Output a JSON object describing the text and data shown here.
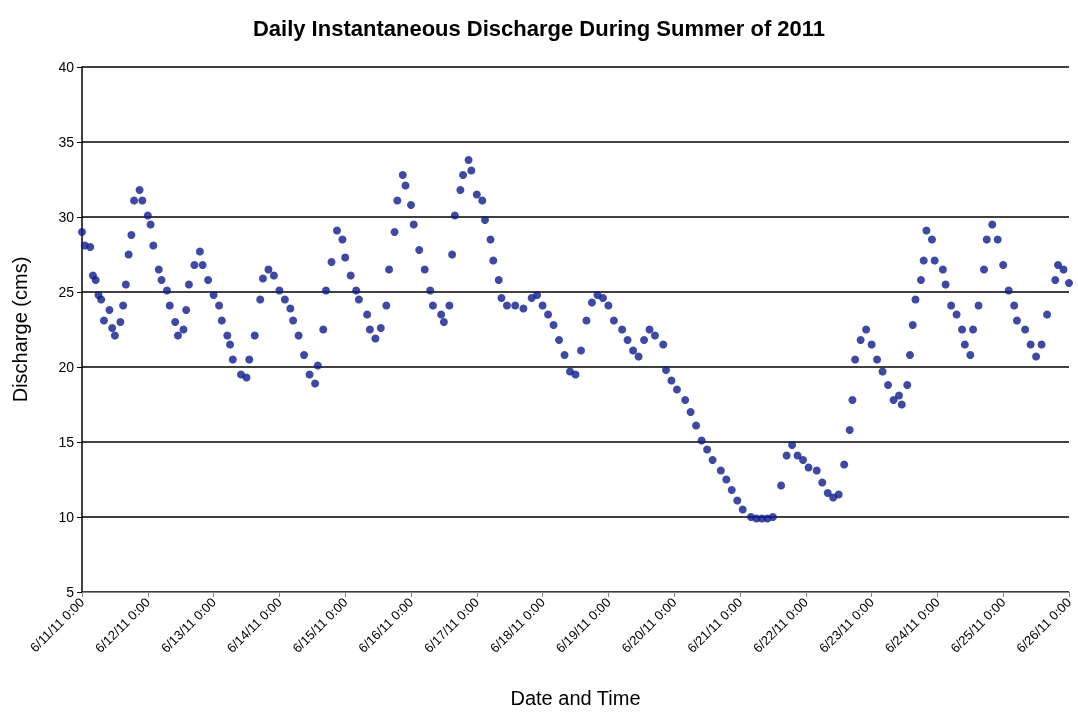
{
  "chart_data": {
    "type": "scatter",
    "title": "Daily Instantaneous Discharge During Summer of 2011",
    "xlabel": "Date and Time",
    "ylabel": "Discharge (cms)",
    "x": [
      "2011-06-11T00:00",
      "2011-06-11T01:00",
      "2011-06-11T03:00",
      "2011-06-11T04:00",
      "2011-06-11T05:00",
      "2011-06-11T06:00",
      "2011-06-11T07:00",
      "2011-06-11T08:00",
      "2011-06-11T10:00",
      "2011-06-11T11:00",
      "2011-06-11T12:00",
      "2011-06-11T14:00",
      "2011-06-11T15:00",
      "2011-06-11T16:00",
      "2011-06-11T17:00",
      "2011-06-11T18:00",
      "2011-06-11T19:00",
      "2011-06-11T21:00",
      "2011-06-11T22:00",
      "2011-06-12T00:00",
      "2011-06-12T01:00",
      "2011-06-12T02:00",
      "2011-06-12T04:00",
      "2011-06-12T05:00",
      "2011-06-12T07:00",
      "2011-06-12T08:00",
      "2011-06-12T10:00",
      "2011-06-12T11:00",
      "2011-06-12T13:00",
      "2011-06-12T14:00",
      "2011-06-12T15:00",
      "2011-06-12T17:00",
      "2011-06-12T19:00",
      "2011-06-12T20:00",
      "2011-06-12T22:00",
      "2011-06-13T00:00",
      "2011-06-13T02:00",
      "2011-06-13T03:00",
      "2011-06-13T05:00",
      "2011-06-13T06:00",
      "2011-06-13T07:00",
      "2011-06-13T10:00",
      "2011-06-13T12:00",
      "2011-06-13T13:00",
      "2011-06-13T15:00",
      "2011-06-13T17:00",
      "2011-06-13T18:00",
      "2011-06-13T20:00",
      "2011-06-13T22:00",
      "2011-06-14T00:00",
      "2011-06-14T02:00",
      "2011-06-14T04:00",
      "2011-06-14T05:00",
      "2011-06-14T07:00",
      "2011-06-14T09:00",
      "2011-06-14T11:00",
      "2011-06-14T13:00",
      "2011-06-14T14:00",
      "2011-06-14T16:00",
      "2011-06-14T17:00",
      "2011-06-14T19:00",
      "2011-06-14T21:00",
      "2011-06-14T23:00",
      "2011-06-15T00:00",
      "2011-06-15T02:00",
      "2011-06-15T04:00",
      "2011-06-15T05:00",
      "2011-06-15T08:00",
      "2011-06-15T09:00",
      "2011-06-15T11:00",
      "2011-06-15T13:00",
      "2011-06-15T15:00",
      "2011-06-15T16:00",
      "2011-06-15T18:00",
      "2011-06-15T19:00",
      "2011-06-15T21:00",
      "2011-06-15T22:00",
      "2011-06-16T00:00",
      "2011-06-16T01:00",
      "2011-06-16T03:00",
      "2011-06-16T05:00",
      "2011-06-16T07:00",
      "2011-06-16T08:00",
      "2011-06-16T11:00",
      "2011-06-16T12:00",
      "2011-06-16T14:00",
      "2011-06-16T15:00",
      "2011-06-16T16:00",
      "2011-06-16T18:00",
      "2011-06-16T19:00",
      "2011-06-16T21:00",
      "2011-06-16T22:00",
      "2011-06-17T00:00",
      "2011-06-17T02:00",
      "2011-06-17T03:00",
      "2011-06-17T05:00",
      "2011-06-17T06:00",
      "2011-06-17T08:00",
      "2011-06-17T09:00",
      "2011-06-17T11:00",
      "2011-06-17T14:00",
      "2011-06-17T17:00",
      "2011-06-17T20:00",
      "2011-06-17T22:00",
      "2011-06-18T00:00",
      "2011-06-18T02:00",
      "2011-06-18T04:00",
      "2011-06-18T06:00",
      "2011-06-18T08:00",
      "2011-06-18T10:00",
      "2011-06-18T12:00",
      "2011-06-18T14:00",
      "2011-06-18T16:00",
      "2011-06-18T18:00",
      "2011-06-18T20:00",
      "2011-06-18T22:00",
      "2011-06-19T00:00",
      "2011-06-19T02:00",
      "2011-06-19T05:00",
      "2011-06-19T07:00",
      "2011-06-19T09:00",
      "2011-06-19T11:00",
      "2011-06-19T13:00",
      "2011-06-19T15:00",
      "2011-06-19T17:00",
      "2011-06-19T20:00",
      "2011-06-19T21:00",
      "2011-06-19T23:00",
      "2011-06-20T01:00",
      "2011-06-20T04:00",
      "2011-06-20T06:00",
      "2011-06-20T08:00",
      "2011-06-20T10:00",
      "2011-06-20T12:00",
      "2011-06-20T14:00",
      "2011-06-20T17:00",
      "2011-06-20T19:00",
      "2011-06-20T21:00",
      "2011-06-20T23:00",
      "2011-06-21T01:00",
      "2011-06-21T04:00",
      "2011-06-21T06:00",
      "2011-06-21T08:00",
      "2011-06-21T10:00",
      "2011-06-21T12:00",
      "2011-06-21T15:00",
      "2011-06-21T17:00",
      "2011-06-21T19:00",
      "2011-06-21T21:00",
      "2011-06-21T23:00",
      "2011-06-22T01:00",
      "2011-06-22T04:00",
      "2011-06-22T06:00",
      "2011-06-22T08:00",
      "2011-06-22T10:00",
      "2011-06-22T12:00",
      "2011-06-22T14:00",
      "2011-06-22T16:00",
      "2011-06-22T17:00",
      "2011-06-22T18:00",
      "2011-06-22T20:00",
      "2011-06-22T22:00",
      "2011-06-23T00:00",
      "2011-06-23T02:00",
      "2011-06-23T04:00",
      "2011-06-23T06:00",
      "2011-06-23T08:00",
      "2011-06-23T10:00",
      "2011-06-23T11:00",
      "2011-06-23T13:00",
      "2011-06-23T14:00",
      "2011-06-23T15:00",
      "2011-06-23T16:00",
      "2011-06-23T18:00",
      "2011-06-23T19:00",
      "2011-06-23T20:00",
      "2011-06-23T22:00",
      "2011-06-23T23:00",
      "2011-06-24T02:00",
      "2011-06-24T03:00",
      "2011-06-24T05:00",
      "2011-06-24T07:00",
      "2011-06-24T09:00",
      "2011-06-24T10:00",
      "2011-06-24T12:00",
      "2011-06-24T13:00",
      "2011-06-24T15:00",
      "2011-06-24T17:00",
      "2011-06-24T18:00",
      "2011-06-24T20:00",
      "2011-06-24T22:00",
      "2011-06-25T00:00",
      "2011-06-25T02:00",
      "2011-06-25T04:00",
      "2011-06-25T05:00",
      "2011-06-25T08:00",
      "2011-06-25T10:00",
      "2011-06-25T12:00",
      "2011-06-25T14:00",
      "2011-06-25T16:00",
      "2011-06-25T19:00",
      "2011-06-25T20:00",
      "2011-06-25T22:00",
      "2011-06-26T00:00"
    ],
    "series": [
      {
        "color": "#0c1c8c",
        "values": [
          29.0,
          28.1,
          28.0,
          26.1,
          25.8,
          24.8,
          24.5,
          23.1,
          23.8,
          22.6,
          22.1,
          23.0,
          24.1,
          25.5,
          27.5,
          28.8,
          31.1,
          31.8,
          31.1,
          30.1,
          29.5,
          28.1,
          26.5,
          25.8,
          25.1,
          24.1,
          23.0,
          22.1,
          22.5,
          23.8,
          25.5,
          26.8,
          27.7,
          26.8,
          25.8,
          24.8,
          24.1,
          23.1,
          22.1,
          21.5,
          20.5,
          19.5,
          19.3,
          20.5,
          22.1,
          24.5,
          25.9,
          26.5,
          26.1,
          25.1,
          24.5,
          23.9,
          23.1,
          22.1,
          20.8,
          19.5,
          18.9,
          20.1,
          22.5,
          25.1,
          27.0,
          29.1,
          28.5,
          27.3,
          26.1,
          25.1,
          24.5,
          23.5,
          22.5,
          21.9,
          22.6,
          24.1,
          26.5,
          29.0,
          31.1,
          32.8,
          32.1,
          30.8,
          29.5,
          27.8,
          26.5,
          25.1,
          24.1,
          23.5,
          23.0,
          24.1,
          27.5,
          30.1,
          31.8,
          32.8,
          33.8,
          33.1,
          31.5,
          31.1,
          29.8,
          28.5,
          27.1,
          25.8,
          24.6,
          24.1,
          24.1,
          23.9,
          24.6,
          24.8,
          24.1,
          23.5,
          22.8,
          21.8,
          20.8,
          19.7,
          19.5,
          21.1,
          23.1,
          24.3,
          24.8,
          24.6,
          24.1,
          23.1,
          22.5,
          21.8,
          21.1,
          20.7,
          21.8,
          22.5,
          22.1,
          21.5,
          19.8,
          19.1,
          18.5,
          17.8,
          17.0,
          16.1,
          15.1,
          14.5,
          13.8,
          13.1,
          12.5,
          11.8,
          11.1,
          10.5,
          10.0,
          9.9,
          9.9,
          9.9,
          10.0,
          12.1,
          14.1,
          14.8,
          14.1,
          13.8,
          13.3,
          13.1,
          12.3,
          11.6,
          11.3,
          11.5,
          13.5,
          15.8,
          17.8,
          20.5,
          21.8,
          22.5,
          21.5,
          20.5,
          19.7,
          18.8,
          17.8,
          18.1,
          17.5,
          18.8,
          20.8,
          22.8,
          24.5,
          25.8,
          27.1,
          29.1,
          28.5,
          27.1,
          26.5,
          25.5,
          24.1,
          23.5,
          22.5,
          21.5,
          20.8,
          22.5,
          24.1,
          26.5,
          28.5,
          29.5,
          28.5,
          26.8,
          25.1,
          24.1,
          23.1,
          22.5,
          21.5,
          20.7,
          21.5,
          23.5,
          25.8,
          26.8,
          26.5,
          25.6
        ]
      }
    ],
    "xlim": [
      "2011-06-11T00:00",
      "2011-06-26T00:00"
    ],
    "xticks": [
      {
        "value": "2011-06-11T00:00",
        "label": "6/11/11 0:00"
      },
      {
        "value": "2011-06-12T00:00",
        "label": "6/12/11 0:00"
      },
      {
        "value": "2011-06-13T00:00",
        "label": "6/13/11 0:00"
      },
      {
        "value": "2011-06-14T00:00",
        "label": "6/14/11 0:00"
      },
      {
        "value": "2011-06-15T00:00",
        "label": "6/15/11 0:00"
      },
      {
        "value": "2011-06-16T00:00",
        "label": "6/16/11 0:00"
      },
      {
        "value": "2011-06-17T00:00",
        "label": "6/17/11 0:00"
      },
      {
        "value": "2011-06-18T00:00",
        "label": "6/18/11 0:00"
      },
      {
        "value": "2011-06-19T00:00",
        "label": "6/19/11 0:00"
      },
      {
        "value": "2011-06-20T00:00",
        "label": "6/20/11 0:00"
      },
      {
        "value": "2011-06-21T00:00",
        "label": "6/21/11 0:00"
      },
      {
        "value": "2011-06-22T00:00",
        "label": "6/22/11 0:00"
      },
      {
        "value": "2011-06-23T00:00",
        "label": "6/23/11 0:00"
      },
      {
        "value": "2011-06-24T00:00",
        "label": "6/24/11 0:00"
      },
      {
        "value": "2011-06-25T00:00",
        "label": "6/25/11 0:00"
      },
      {
        "value": "2011-06-26T00:00",
        "label": "6/26/11 0:00"
      }
    ],
    "ylim": [
      5,
      40
    ],
    "yticks": [
      5,
      10,
      15,
      20,
      25,
      30,
      35,
      40
    ],
    "grid": "y",
    "marker": "circle"
  }
}
